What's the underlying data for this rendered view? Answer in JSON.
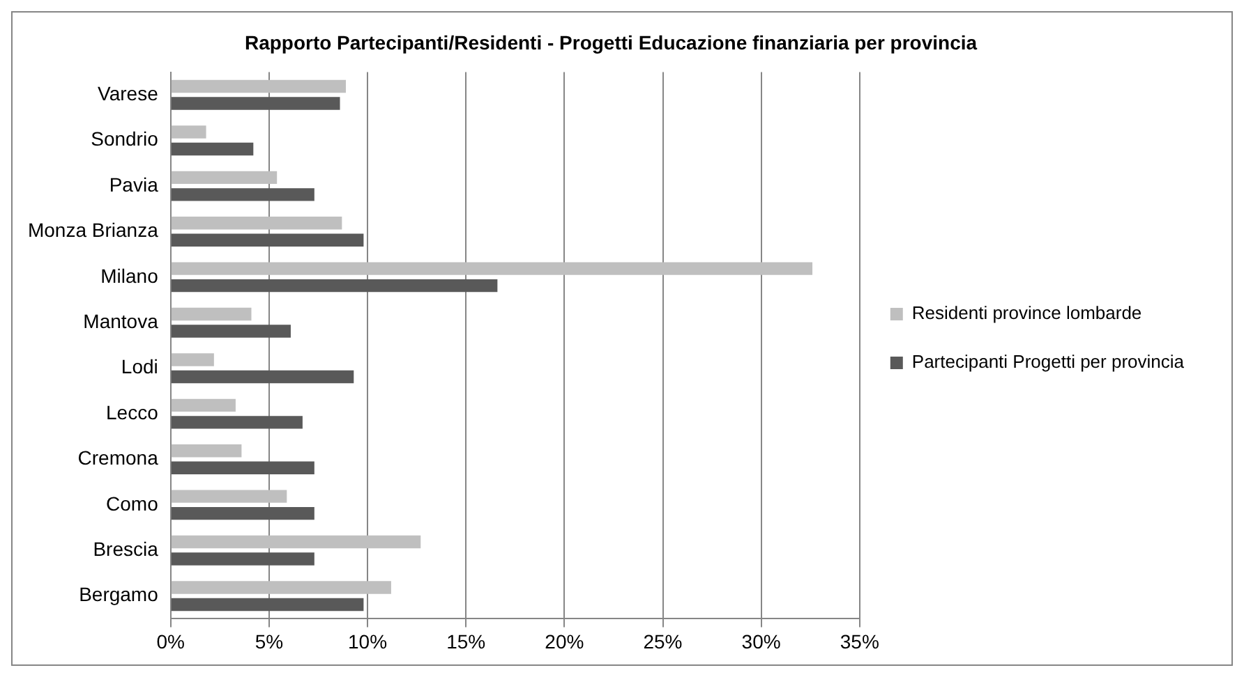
{
  "chart_data": {
    "type": "bar",
    "orientation": "horizontal",
    "title": "Rapporto Partecipanti/Residenti - Progetti Educazione finanziaria per provincia",
    "categories": [
      "Varese",
      "Sondrio",
      "Pavia",
      "Monza Brianza",
      "Milano",
      "Mantova",
      "Lodi",
      "Lecco",
      "Cremona",
      "Como",
      "Brescia",
      "Bergamo"
    ],
    "series": [
      {
        "name": "Residenti province lombarde",
        "color": "#bfbfbf",
        "values": [
          8.9,
          1.8,
          5.4,
          8.7,
          32.6,
          4.1,
          2.2,
          3.3,
          3.6,
          5.9,
          12.7,
          11.2
        ]
      },
      {
        "name": "Partecipanti Progetti per provincia",
        "color": "#595959",
        "values": [
          8.6,
          4.2,
          7.3,
          9.8,
          16.6,
          6.1,
          9.3,
          6.7,
          7.3,
          7.3,
          7.3,
          9.8
        ]
      }
    ],
    "xlim": [
      0,
      35
    ],
    "xticks": [
      {
        "value": 0,
        "label": "0%"
      },
      {
        "value": 5,
        "label": "5%"
      },
      {
        "value": 10,
        "label": "10%"
      },
      {
        "value": 15,
        "label": "15%"
      },
      {
        "value": 20,
        "label": "20%"
      },
      {
        "value": 25,
        "label": "25%"
      },
      {
        "value": 30,
        "label": "30%"
      },
      {
        "value": 35,
        "label": "35%"
      }
    ],
    "grid": "x",
    "legend": "right"
  }
}
